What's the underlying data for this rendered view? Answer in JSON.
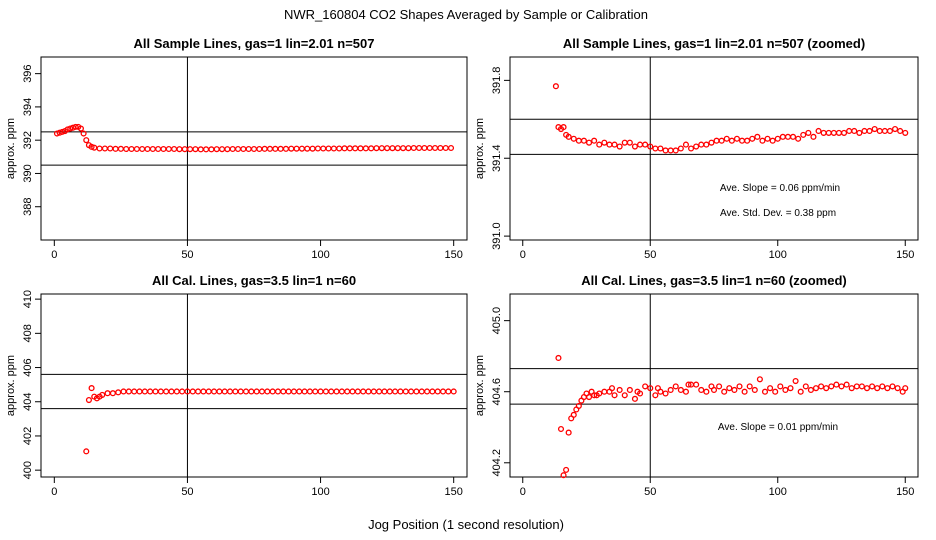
{
  "page": {
    "main_title": "NWR_160804  CO2 Shapes Averaged by Sample or Calibration",
    "xlabel": "Jog Position (1 second resolution)"
  },
  "chart_data": [
    {
      "type": "scatter",
      "title": "All Sample Lines, gas=1 lin=2.01 n=507",
      "ylabel": "approx. ppm",
      "xlim": [
        -5,
        155
      ],
      "ylim": [
        386,
        397
      ],
      "xticks": [
        0,
        50,
        100,
        150
      ],
      "yticks": [
        388,
        390,
        392,
        394,
        396
      ],
      "vline": 50,
      "hlines": [
        392.5,
        390.5
      ],
      "point_color": "#ff0000",
      "annotations": [],
      "points": [
        [
          1,
          392.4
        ],
        [
          2,
          392.45
        ],
        [
          3,
          392.5
        ],
        [
          4,
          392.55
        ],
        [
          5,
          392.65
        ],
        [
          6,
          392.7
        ],
        [
          7,
          392.75
        ],
        [
          8,
          392.8
        ],
        [
          9,
          392.8
        ],
        [
          10,
          392.7
        ],
        [
          11,
          392.4
        ],
        [
          12,
          392.0
        ],
        [
          13,
          391.7
        ],
        [
          14,
          391.6
        ],
        [
          15,
          391.55
        ],
        [
          17,
          391.5
        ],
        [
          19,
          391.5
        ],
        [
          21,
          391.5
        ],
        [
          23,
          391.48
        ],
        [
          25,
          391.48
        ],
        [
          27,
          391.47
        ],
        [
          29,
          391.47
        ],
        [
          31,
          391.47
        ],
        [
          33,
          391.47
        ],
        [
          35,
          391.47
        ],
        [
          37,
          391.47
        ],
        [
          39,
          391.47
        ],
        [
          41,
          391.47
        ],
        [
          43,
          391.47
        ],
        [
          45,
          391.47
        ],
        [
          47,
          391.46
        ],
        [
          49,
          391.46
        ],
        [
          51,
          391.46
        ],
        [
          53,
          391.46
        ],
        [
          55,
          391.45
        ],
        [
          57,
          391.45
        ],
        [
          59,
          391.45
        ],
        [
          61,
          391.46
        ],
        [
          63,
          391.46
        ],
        [
          65,
          391.46
        ],
        [
          67,
          391.47
        ],
        [
          69,
          391.47
        ],
        [
          71,
          391.47
        ],
        [
          73,
          391.47
        ],
        [
          75,
          391.47
        ],
        [
          77,
          391.47
        ],
        [
          79,
          391.48
        ],
        [
          81,
          391.48
        ],
        [
          83,
          391.48
        ],
        [
          85,
          391.48
        ],
        [
          87,
          391.48
        ],
        [
          89,
          391.49
        ],
        [
          91,
          391.49
        ],
        [
          93,
          391.49
        ],
        [
          95,
          391.49
        ],
        [
          97,
          391.49
        ],
        [
          99,
          391.5
        ],
        [
          101,
          391.5
        ],
        [
          103,
          391.5
        ],
        [
          105,
          391.5
        ],
        [
          107,
          391.5
        ],
        [
          109,
          391.51
        ],
        [
          111,
          391.51
        ],
        [
          113,
          391.51
        ],
        [
          115,
          391.51
        ],
        [
          117,
          391.51
        ],
        [
          119,
          391.51
        ],
        [
          121,
          391.52
        ],
        [
          123,
          391.52
        ],
        [
          125,
          391.52
        ],
        [
          127,
          391.52
        ],
        [
          129,
          391.52
        ],
        [
          131,
          391.52
        ],
        [
          133,
          391.52
        ],
        [
          135,
          391.53
        ],
        [
          137,
          391.53
        ],
        [
          139,
          391.53
        ],
        [
          141,
          391.53
        ],
        [
          143,
          391.53
        ],
        [
          145,
          391.53
        ],
        [
          147,
          391.53
        ],
        [
          149,
          391.53
        ]
      ]
    },
    {
      "type": "scatter",
      "title": "All Sample Lines, gas=1 lin=2.01 n=507 (zoomed)",
      "ylabel": "approx. ppm",
      "xlim": [
        -5,
        155
      ],
      "ylim": [
        390.98,
        391.92
      ],
      "xticks": [
        0,
        50,
        100,
        150
      ],
      "yticks": [
        391.0,
        391.4,
        391.8
      ],
      "vline": 50,
      "hlines": [
        391.6,
        391.42
      ],
      "point_color": "#ff0000",
      "annotations": [
        "Ave. Slope =  0.06  ppm/min",
        "Ave. Std. Dev. =  0.38  ppm"
      ],
      "points": [
        [
          13,
          391.77
        ],
        [
          14,
          391.56
        ],
        [
          15,
          391.55
        ],
        [
          16,
          391.56
        ],
        [
          17,
          391.52
        ],
        [
          18,
          391.51
        ],
        [
          20,
          391.5
        ],
        [
          22,
          391.49
        ],
        [
          24,
          391.49
        ],
        [
          26,
          391.48
        ],
        [
          28,
          391.49
        ],
        [
          30,
          391.47
        ],
        [
          32,
          391.48
        ],
        [
          34,
          391.47
        ],
        [
          36,
          391.47
        ],
        [
          38,
          391.46
        ],
        [
          40,
          391.48
        ],
        [
          42,
          391.48
        ],
        [
          44,
          391.46
        ],
        [
          46,
          391.47
        ],
        [
          48,
          391.47
        ],
        [
          50,
          391.46
        ],
        [
          52,
          391.45
        ],
        [
          54,
          391.45
        ],
        [
          56,
          391.44
        ],
        [
          58,
          391.44
        ],
        [
          60,
          391.44
        ],
        [
          62,
          391.45
        ],
        [
          64,
          391.47
        ],
        [
          66,
          391.45
        ],
        [
          68,
          391.46
        ],
        [
          70,
          391.47
        ],
        [
          72,
          391.47
        ],
        [
          74,
          391.48
        ],
        [
          76,
          391.49
        ],
        [
          78,
          391.49
        ],
        [
          80,
          391.5
        ],
        [
          82,
          391.49
        ],
        [
          84,
          391.5
        ],
        [
          86,
          391.49
        ],
        [
          88,
          391.49
        ],
        [
          90,
          391.5
        ],
        [
          92,
          391.51
        ],
        [
          94,
          391.49
        ],
        [
          96,
          391.5
        ],
        [
          98,
          391.49
        ],
        [
          100,
          391.5
        ],
        [
          102,
          391.51
        ],
        [
          104,
          391.51
        ],
        [
          106,
          391.51
        ],
        [
          108,
          391.5
        ],
        [
          110,
          391.52
        ],
        [
          112,
          391.53
        ],
        [
          114,
          391.51
        ],
        [
          116,
          391.54
        ],
        [
          118,
          391.53
        ],
        [
          120,
          391.53
        ],
        [
          122,
          391.53
        ],
        [
          124,
          391.53
        ],
        [
          126,
          391.53
        ],
        [
          128,
          391.54
        ],
        [
          130,
          391.54
        ],
        [
          132,
          391.53
        ],
        [
          134,
          391.54
        ],
        [
          136,
          391.54
        ],
        [
          138,
          391.55
        ],
        [
          140,
          391.54
        ],
        [
          142,
          391.54
        ],
        [
          144,
          391.54
        ],
        [
          146,
          391.55
        ],
        [
          148,
          391.54
        ],
        [
          150,
          391.53
        ]
      ]
    },
    {
      "type": "scatter",
      "title": "All Cal. Lines, gas=3.5 lin=1 n=60",
      "ylabel": "approx. ppm",
      "xlim": [
        -5,
        155
      ],
      "ylim": [
        399.6,
        410.3
      ],
      "xticks": [
        0,
        50,
        100,
        150
      ],
      "yticks": [
        400,
        402,
        404,
        406,
        408,
        410
      ],
      "vline": 50,
      "hlines": [
        405.6,
        403.6
      ],
      "point_color": "#ff0000",
      "annotations": [],
      "points": [
        [
          12,
          401.1
        ],
        [
          13,
          404.1
        ],
        [
          14,
          404.8
        ],
        [
          15,
          404.3
        ],
        [
          16,
          404.2
        ],
        [
          17,
          404.3
        ],
        [
          18,
          404.4
        ],
        [
          20,
          404.5
        ],
        [
          22,
          404.5
        ],
        [
          24,
          404.55
        ],
        [
          26,
          404.6
        ],
        [
          28,
          404.6
        ],
        [
          30,
          404.6
        ],
        [
          32,
          404.6
        ],
        [
          34,
          404.6
        ],
        [
          36,
          404.6
        ],
        [
          38,
          404.6
        ],
        [
          40,
          404.6
        ],
        [
          42,
          404.6
        ],
        [
          44,
          404.6
        ],
        [
          46,
          404.6
        ],
        [
          48,
          404.6
        ],
        [
          50,
          404.6
        ],
        [
          52,
          404.6
        ],
        [
          54,
          404.6
        ],
        [
          56,
          404.6
        ],
        [
          58,
          404.6
        ],
        [
          60,
          404.6
        ],
        [
          62,
          404.6
        ],
        [
          64,
          404.6
        ],
        [
          66,
          404.6
        ],
        [
          68,
          404.6
        ],
        [
          70,
          404.6
        ],
        [
          72,
          404.6
        ],
        [
          74,
          404.6
        ],
        [
          76,
          404.6
        ],
        [
          78,
          404.6
        ],
        [
          80,
          404.6
        ],
        [
          82,
          404.6
        ],
        [
          84,
          404.6
        ],
        [
          86,
          404.6
        ],
        [
          88,
          404.6
        ],
        [
          90,
          404.6
        ],
        [
          92,
          404.6
        ],
        [
          94,
          404.6
        ],
        [
          96,
          404.6
        ],
        [
          98,
          404.6
        ],
        [
          100,
          404.6
        ],
        [
          102,
          404.6
        ],
        [
          104,
          404.6
        ],
        [
          106,
          404.6
        ],
        [
          108,
          404.6
        ],
        [
          110,
          404.6
        ],
        [
          112,
          404.6
        ],
        [
          114,
          404.6
        ],
        [
          116,
          404.6
        ],
        [
          118,
          404.6
        ],
        [
          120,
          404.6
        ],
        [
          122,
          404.6
        ],
        [
          124,
          404.6
        ],
        [
          126,
          404.6
        ],
        [
          128,
          404.6
        ],
        [
          130,
          404.6
        ],
        [
          132,
          404.6
        ],
        [
          134,
          404.6
        ],
        [
          136,
          404.6
        ],
        [
          138,
          404.6
        ],
        [
          140,
          404.6
        ],
        [
          142,
          404.6
        ],
        [
          144,
          404.6
        ],
        [
          146,
          404.6
        ],
        [
          148,
          404.6
        ],
        [
          150,
          404.6
        ]
      ]
    },
    {
      "type": "scatter",
      "title": "All Cal. Lines, gas=3.5 lin=1 n=60 (zoomed)",
      "ylabel": "approx. ppm",
      "xlim": [
        -5,
        155
      ],
      "ylim": [
        404.12,
        405.15
      ],
      "xticks": [
        0,
        50,
        100,
        150
      ],
      "yticks": [
        404.2,
        404.6,
        405.0
      ],
      "vline": 50,
      "hlines": [
        404.73,
        404.53
      ],
      "point_color": "#ff0000",
      "annotations": [
        "Ave. Slope =  0.01  ppm/min"
      ],
      "points": [
        [
          14,
          404.79
        ],
        [
          15,
          404.39
        ],
        [
          16,
          404.13
        ],
        [
          17,
          404.16
        ],
        [
          18,
          404.37
        ],
        [
          19,
          404.45
        ],
        [
          20,
          404.47
        ],
        [
          21,
          404.5
        ],
        [
          22,
          404.52
        ],
        [
          23,
          404.55
        ],
        [
          24,
          404.57
        ],
        [
          25,
          404.59
        ],
        [
          26,
          404.57
        ],
        [
          27,
          404.6
        ],
        [
          28,
          404.58
        ],
        [
          29,
          404.58
        ],
        [
          30,
          404.59
        ],
        [
          32,
          404.6
        ],
        [
          34,
          404.6
        ],
        [
          35,
          404.62
        ],
        [
          36,
          404.58
        ],
        [
          38,
          404.61
        ],
        [
          40,
          404.58
        ],
        [
          42,
          404.61
        ],
        [
          44,
          404.56
        ],
        [
          45,
          404.6
        ],
        [
          46,
          404.59
        ],
        [
          48,
          404.63
        ],
        [
          50,
          404.62
        ],
        [
          52,
          404.58
        ],
        [
          53,
          404.62
        ],
        [
          54,
          404.6
        ],
        [
          56,
          404.59
        ],
        [
          58,
          404.61
        ],
        [
          60,
          404.63
        ],
        [
          62,
          404.61
        ],
        [
          64,
          404.6
        ],
        [
          65,
          404.64
        ],
        [
          66,
          404.64
        ],
        [
          68,
          404.64
        ],
        [
          70,
          404.61
        ],
        [
          72,
          404.6
        ],
        [
          74,
          404.63
        ],
        [
          75,
          404.61
        ],
        [
          77,
          404.63
        ],
        [
          79,
          404.6
        ],
        [
          81,
          404.62
        ],
        [
          83,
          404.61
        ],
        [
          85,
          404.63
        ],
        [
          87,
          404.6
        ],
        [
          89,
          404.63
        ],
        [
          91,
          404.61
        ],
        [
          93,
          404.67
        ],
        [
          95,
          404.6
        ],
        [
          97,
          404.62
        ],
        [
          99,
          404.6
        ],
        [
          101,
          404.63
        ],
        [
          103,
          404.61
        ],
        [
          105,
          404.62
        ],
        [
          107,
          404.66
        ],
        [
          109,
          404.6
        ],
        [
          111,
          404.63
        ],
        [
          113,
          404.61
        ],
        [
          115,
          404.62
        ],
        [
          117,
          404.63
        ],
        [
          119,
          404.62
        ],
        [
          121,
          404.63
        ],
        [
          123,
          404.64
        ],
        [
          125,
          404.63
        ],
        [
          127,
          404.64
        ],
        [
          129,
          404.62
        ],
        [
          131,
          404.63
        ],
        [
          133,
          404.63
        ],
        [
          135,
          404.62
        ],
        [
          137,
          404.63
        ],
        [
          139,
          404.62
        ],
        [
          141,
          404.63
        ],
        [
          143,
          404.62
        ],
        [
          145,
          404.63
        ],
        [
          147,
          404.62
        ],
        [
          149,
          404.6
        ],
        [
          150,
          404.62
        ]
      ]
    }
  ]
}
